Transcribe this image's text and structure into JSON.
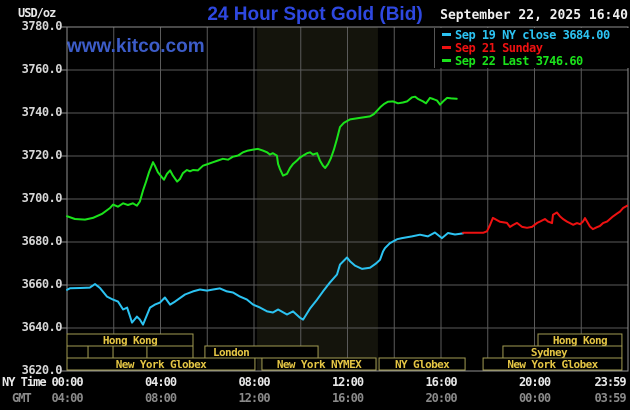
{
  "header": {
    "unit_label": "USD/oz",
    "title": "24 Hour Spot Gold (Bid)",
    "datetime": "September 22, 2025 16:40",
    "watermark": "www.kitco.com"
  },
  "legend": [
    {
      "label": "Sep 19 NY close 3684.00",
      "color": "#2cc3f2"
    },
    {
      "label": "Sep 21 Sunday",
      "color": "#ee1111"
    },
    {
      "label": "Sep 22 Last 3746.60",
      "color": "#1be31b"
    }
  ],
  "xaxis": {
    "ny_label": "NY Time",
    "gmt_label": "GMT"
  },
  "colors": {
    "background": "#000000",
    "grid": "#5a5a5a",
    "border": "#8f8f8f",
    "band": "#14140c",
    "session_border": "#a29b52",
    "session_text": "#e5c644",
    "title_blue": "#2e48e0",
    "watermark_blue": "#3c5cc8",
    "date_text": "#f0f0f0",
    "y_text": "#d6d6d6",
    "gmt_text": "#8a8a8a"
  },
  "sessions": {
    "rows": [
      {
        "boxes": [
          {
            "label": "Hong Kong",
            "start": 0,
            "end": 5.39
          },
          {
            "label": "Hong Kong",
            "start": 20.15,
            "end": 23.74
          }
        ]
      },
      {
        "boxes": [
          {
            "label": "",
            "start": 0,
            "end": 0.9
          },
          {
            "label": "",
            "start": 0.9,
            "end": 1.97
          },
          {
            "label": "",
            "start": 1.97,
            "end": 3.42
          },
          {
            "label": "",
            "start": 3.42,
            "end": 5.39
          },
          {
            "label": "London",
            "start": 5.9,
            "end": 10.74,
            "lx": 7.02
          },
          {
            "label": "Sydney",
            "start": 18.65,
            "end": 23.74,
            "lx": 20.62
          }
        ]
      },
      {
        "boxes": [
          {
            "label": "New York Globex",
            "start": 0,
            "end": 8.04
          },
          {
            "label": "New York NYMEX",
            "start": 8.34,
            "end": 13.22
          },
          {
            "label": "NY Globex",
            "start": 13.35,
            "end": 17.03
          },
          {
            "label": "New York Globex",
            "start": 17.8,
            "end": 23.74
          }
        ]
      }
    ]
  },
  "chart_data": {
    "type": "line",
    "title": "24 Hour Spot Gold (Bid)",
    "ylabel": "USD/oz",
    "ylim": [
      3620,
      3780
    ],
    "ytick_step": 20,
    "yticks": [
      "3780.0",
      "3760.0",
      "3740.0",
      "3720.0",
      "3700.0",
      "3680.0",
      "3660.0",
      "3640.0",
      "3620.0"
    ],
    "xlim_hours": [
      0,
      24
    ],
    "xtick_hours": [
      0,
      4,
      8,
      12,
      16,
      20,
      24
    ],
    "xticks_ny": [
      "00:00",
      "04:00",
      "08:00",
      "12:00",
      "16:00",
      "20:00",
      "23:59"
    ],
    "xticks_gmt": [
      "04:00",
      "08:00",
      "12:00",
      "16:00",
      "20:00",
      "00:00",
      "03:59"
    ],
    "grid": true,
    "legend_position": "top-right",
    "highlight_band_hours": [
      8.13,
      13.3
    ],
    "series": [
      {
        "name": "Sep 19 NY close 3684.00",
        "color": "#2cc3f2",
        "points": [
          [
            0,
            3657.7
          ],
          [
            0.13,
            3658.5
          ],
          [
            0.56,
            3658.6
          ],
          [
            0.98,
            3658.8
          ],
          [
            1.2,
            3660.4
          ],
          [
            1.41,
            3658.6
          ],
          [
            1.71,
            3654.6
          ],
          [
            1.97,
            3653.2
          ],
          [
            2.18,
            3652.3
          ],
          [
            2.4,
            3648.6
          ],
          [
            2.57,
            3649.5
          ],
          [
            2.7,
            3645.3
          ],
          [
            2.78,
            3642.5
          ],
          [
            2.99,
            3645.3
          ],
          [
            3.12,
            3643.9
          ],
          [
            3.25,
            3641.6
          ],
          [
            3.55,
            3649.5
          ],
          [
            3.76,
            3650.9
          ],
          [
            3.98,
            3651.8
          ],
          [
            4.19,
            3654.2
          ],
          [
            4.41,
            3650.9
          ],
          [
            4.62,
            3652.3
          ],
          [
            5.05,
            3655.6
          ],
          [
            5.39,
            3657
          ],
          [
            5.69,
            3657.9
          ],
          [
            5.99,
            3657.4
          ],
          [
            6.25,
            3657.9
          ],
          [
            6.54,
            3658.4
          ],
          [
            6.84,
            3657
          ],
          [
            7.1,
            3656.5
          ],
          [
            7.4,
            3654.6
          ],
          [
            7.7,
            3653.2
          ],
          [
            7.96,
            3650.9
          ],
          [
            8.26,
            3649.5
          ],
          [
            8.56,
            3647.7
          ],
          [
            8.81,
            3647.2
          ],
          [
            9.03,
            3648.6
          ],
          [
            9.41,
            3646.3
          ],
          [
            9.67,
            3647.7
          ],
          [
            9.97,
            3644.8
          ],
          [
            10.1,
            3643.9
          ],
          [
            10.4,
            3649.1
          ],
          [
            10.7,
            3653.2
          ],
          [
            10.95,
            3657
          ],
          [
            11.25,
            3661.2
          ],
          [
            11.55,
            3664.9
          ],
          [
            11.68,
            3669.5
          ],
          [
            11.98,
            3672.8
          ],
          [
            12.11,
            3671
          ],
          [
            12.32,
            3669
          ],
          [
            12.62,
            3667.5
          ],
          [
            12.96,
            3668
          ],
          [
            13.22,
            3670
          ],
          [
            13.39,
            3671.7
          ],
          [
            13.52,
            3675.6
          ],
          [
            13.6,
            3677.1
          ],
          [
            13.82,
            3679.5
          ],
          [
            14.12,
            3681.3
          ],
          [
            14.33,
            3681.8
          ],
          [
            14.76,
            3682.6
          ],
          [
            15.1,
            3683.4
          ],
          [
            15.44,
            3682.6
          ],
          [
            15.74,
            3684.4
          ],
          [
            16.04,
            3681.8
          ],
          [
            16.3,
            3684.2
          ],
          [
            16.6,
            3683.5
          ],
          [
            16.94,
            3684
          ]
        ]
      },
      {
        "name": "Sep 21 Sunday",
        "color": "#ee1111",
        "points": [
          [
            16.94,
            3684.3
          ],
          [
            17.8,
            3684.3
          ],
          [
            17.97,
            3685
          ],
          [
            18.1,
            3688
          ],
          [
            18.22,
            3691.2
          ],
          [
            18.52,
            3689.4
          ],
          [
            18.82,
            3688.9
          ],
          [
            18.95,
            3687
          ],
          [
            19.08,
            3687.9
          ],
          [
            19.25,
            3688.9
          ],
          [
            19.47,
            3687
          ],
          [
            19.68,
            3686.6
          ],
          [
            19.89,
            3687
          ],
          [
            20.11,
            3688.9
          ],
          [
            20.23,
            3689.5
          ],
          [
            20.45,
            3690.7
          ],
          [
            20.58,
            3689.5
          ],
          [
            20.75,
            3688.8
          ],
          [
            20.79,
            3692.7
          ],
          [
            20.96,
            3693.7
          ],
          [
            21.09,
            3691.9
          ],
          [
            21.22,
            3690.7
          ],
          [
            21.39,
            3689.5
          ],
          [
            21.52,
            3688.8
          ],
          [
            21.65,
            3688
          ],
          [
            21.82,
            3688.8
          ],
          [
            21.95,
            3688.3
          ],
          [
            22.07,
            3689.5
          ],
          [
            22.16,
            3691.1
          ],
          [
            22.25,
            3689.5
          ],
          [
            22.37,
            3687.2
          ],
          [
            22.5,
            3686
          ],
          [
            22.67,
            3686.9
          ],
          [
            22.8,
            3687.5
          ],
          [
            22.93,
            3688.8
          ],
          [
            23.1,
            3689.5
          ],
          [
            23.23,
            3690.7
          ],
          [
            23.36,
            3691.9
          ],
          [
            23.53,
            3693.2
          ],
          [
            23.66,
            3694.2
          ],
          [
            23.79,
            3695.8
          ],
          [
            23.96,
            3696.9
          ]
        ]
      },
      {
        "name": "Sep 22 Last 3746.60",
        "color": "#1be31b",
        "points": [
          [
            0,
            3692
          ],
          [
            0.34,
            3690.7
          ],
          [
            0.77,
            3690.4
          ],
          [
            1.11,
            3691.2
          ],
          [
            1.5,
            3693.1
          ],
          [
            1.84,
            3695.8
          ],
          [
            1.97,
            3697.4
          ],
          [
            2.18,
            3696.4
          ],
          [
            2.4,
            3698
          ],
          [
            2.61,
            3697.2
          ],
          [
            2.82,
            3698
          ],
          [
            2.99,
            3696.9
          ],
          [
            3.12,
            3698.9
          ],
          [
            3.25,
            3703.9
          ],
          [
            3.38,
            3708
          ],
          [
            3.51,
            3712.4
          ],
          [
            3.68,
            3717.1
          ],
          [
            3.76,
            3715.5
          ],
          [
            3.89,
            3712.4
          ],
          [
            4.06,
            3710.1
          ],
          [
            4.15,
            3709
          ],
          [
            4.28,
            3711.7
          ],
          [
            4.41,
            3713.3
          ],
          [
            4.53,
            3710.9
          ],
          [
            4.71,
            3708.1
          ],
          [
            4.83,
            3709.3
          ],
          [
            4.96,
            3712
          ],
          [
            5.13,
            3713.5
          ],
          [
            5.26,
            3712.9
          ],
          [
            5.39,
            3713.5
          ],
          [
            5.6,
            3713.3
          ],
          [
            5.82,
            3715.5
          ],
          [
            6.03,
            3716.3
          ],
          [
            6.25,
            3717.1
          ],
          [
            6.46,
            3717.9
          ],
          [
            6.67,
            3718.7
          ],
          [
            6.89,
            3718.3
          ],
          [
            7.1,
            3719.7
          ],
          [
            7.31,
            3720.2
          ],
          [
            7.53,
            3721.7
          ],
          [
            7.74,
            3722.5
          ],
          [
            7.96,
            3723
          ],
          [
            8.17,
            3723.3
          ],
          [
            8.38,
            3722.5
          ],
          [
            8.56,
            3721.7
          ],
          [
            8.68,
            3720.7
          ],
          [
            8.81,
            3721.3
          ],
          [
            8.98,
            3720.2
          ],
          [
            9.03,
            3716.3
          ],
          [
            9.11,
            3714
          ],
          [
            9.24,
            3710.9
          ],
          [
            9.41,
            3711.7
          ],
          [
            9.54,
            3714.4
          ],
          [
            9.67,
            3716.3
          ],
          [
            9.84,
            3717.9
          ],
          [
            9.97,
            3719.3
          ],
          [
            10.1,
            3720.2
          ],
          [
            10.27,
            3721.3
          ],
          [
            10.4,
            3721.7
          ],
          [
            10.52,
            3720.7
          ],
          [
            10.7,
            3721.3
          ],
          [
            10.82,
            3717.9
          ],
          [
            10.95,
            3715.5
          ],
          [
            11.04,
            3714.4
          ],
          [
            11.17,
            3716.3
          ],
          [
            11.29,
            3719
          ],
          [
            11.42,
            3723
          ],
          [
            11.55,
            3728
          ],
          [
            11.68,
            3733.5
          ],
          [
            11.85,
            3735.5
          ],
          [
            12.11,
            3737
          ],
          [
            12.53,
            3737.7
          ],
          [
            12.96,
            3738.4
          ],
          [
            13.13,
            3739.5
          ],
          [
            13.3,
            3741.5
          ],
          [
            13.43,
            3743
          ],
          [
            13.56,
            3744.2
          ],
          [
            13.73,
            3745.2
          ],
          [
            13.95,
            3745.4
          ],
          [
            14.16,
            3744.5
          ],
          [
            14.37,
            3744.9
          ],
          [
            14.55,
            3745.4
          ],
          [
            14.76,
            3747.3
          ],
          [
            14.89,
            3747.6
          ],
          [
            15.02,
            3746.5
          ],
          [
            15.23,
            3745.4
          ],
          [
            15.36,
            3744.5
          ],
          [
            15.53,
            3747
          ],
          [
            15.66,
            3746.5
          ],
          [
            15.83,
            3745.8
          ],
          [
            15.96,
            3743.9
          ],
          [
            16.09,
            3745.4
          ],
          [
            16.26,
            3747
          ],
          [
            16.43,
            3746.8
          ],
          [
            16.67,
            3746.6
          ]
        ]
      }
    ]
  }
}
